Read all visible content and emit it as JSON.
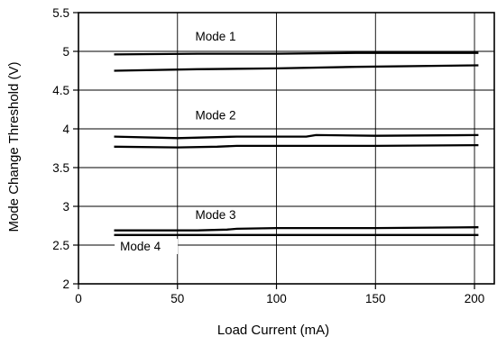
{
  "chart_data": {
    "type": "line",
    "title": "",
    "xlabel": "Load Current (mA)",
    "ylabel": "Mode Change Threshold (V)",
    "xlim": [
      0,
      210
    ],
    "ylim": [
      2,
      5.5
    ],
    "x_ticks": [
      0,
      50,
      100,
      150,
      200
    ],
    "x_tick_labels": [
      "0",
      "50",
      "100",
      "150",
      "200"
    ],
    "y_ticks": [
      2,
      2.5,
      3,
      3.5,
      4,
      4.5,
      5,
      5.5
    ],
    "y_tick_labels": [
      "2",
      "2.5",
      "3",
      "3.5",
      "4",
      "4.5",
      "5",
      "5.5"
    ],
    "grid": true,
    "legend": "none",
    "series": [
      {
        "group": "Mode 1",
        "x": [
          18,
          60,
          100,
          140,
          202
        ],
        "y": [
          4.96,
          4.97,
          4.97,
          4.98,
          4.98
        ]
      },
      {
        "group": "Mode 1",
        "x": [
          18,
          60,
          100,
          140,
          202
        ],
        "y": [
          4.75,
          4.77,
          4.78,
          4.8,
          4.82
        ]
      },
      {
        "group": "Mode 2",
        "x": [
          18,
          50,
          80,
          100,
          115,
          120,
          150,
          202
        ],
        "y": [
          3.9,
          3.88,
          3.9,
          3.9,
          3.9,
          3.92,
          3.91,
          3.92
        ]
      },
      {
        "group": "Mode 2",
        "x": [
          18,
          50,
          70,
          80,
          100,
          150,
          202
        ],
        "y": [
          3.77,
          3.76,
          3.77,
          3.78,
          3.78,
          3.78,
          3.79
        ]
      },
      {
        "group": "Mode 3",
        "x": [
          18,
          60,
          75,
          80,
          100,
          150,
          202
        ],
        "y": [
          2.69,
          2.69,
          2.7,
          2.71,
          2.72,
          2.72,
          2.73
        ]
      },
      {
        "group": "Mode 4",
        "x": [
          18,
          60,
          100,
          150,
          202
        ],
        "y": [
          2.63,
          2.63,
          2.63,
          2.63,
          2.63
        ]
      }
    ],
    "annotations": [
      {
        "text": "Mode 1",
        "x": 59,
        "y": 5.14
      },
      {
        "text": "Mode 2",
        "x": 59,
        "y": 4.12
      },
      {
        "text": "Mode 3",
        "x": 59,
        "y": 2.84
      },
      {
        "text": "Mode 4",
        "x": 21,
        "y": 2.43
      }
    ],
    "colors": {
      "line": "#000000",
      "grid": "#000000",
      "background": "#ffffff"
    }
  }
}
